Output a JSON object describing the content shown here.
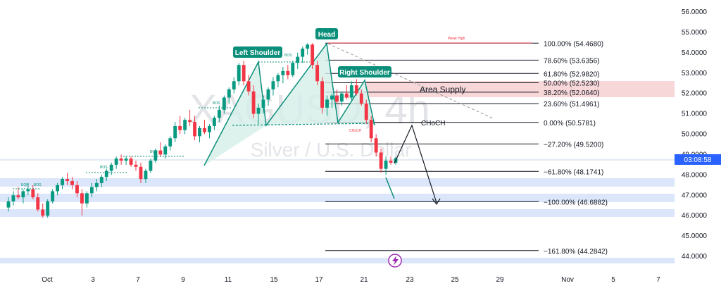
{
  "chart_data": {
    "type": "candlestick",
    "symbol_watermark": "XAGUSD, 4h",
    "subtitle_watermark": "Silver / U.S. Dollar",
    "ylim": [
      43.8,
      56.4
    ],
    "y_ticks": [
      "56.0000",
      "55.0000",
      "54.0000",
      "53.0000",
      "52.0000",
      "51.0000",
      "50.0000",
      "49.0000",
      "48.0000",
      "47.0000",
      "46.0000",
      "45.0000",
      "44.0000"
    ],
    "x_ticks": [
      "Oct",
      "3",
      "7",
      "9",
      "11",
      "15",
      "17",
      "21",
      "23",
      "25",
      "29",
      "Nov",
      "5",
      "7"
    ],
    "price_label": {
      "value": 48.82,
      "text": "03:08:58",
      "color": "#2962ff"
    },
    "candles": [
      [
        46.4,
        46.9,
        46.2,
        46.7
      ],
      [
        46.7,
        47.2,
        46.5,
        47.0
      ],
      [
        47.0,
        47.4,
        46.8,
        46.9
      ],
      [
        46.9,
        47.3,
        46.6,
        47.2
      ],
      [
        47.2,
        47.6,
        47.0,
        47.3
      ],
      [
        47.3,
        47.5,
        46.8,
        46.9
      ],
      [
        46.9,
        47.1,
        46.2,
        46.3
      ],
      [
        46.3,
        46.6,
        45.9,
        46.0
      ],
      [
        46.0,
        46.8,
        45.9,
        46.7
      ],
      [
        46.7,
        47.3,
        46.6,
        47.2
      ],
      [
        47.2,
        47.6,
        47.0,
        47.5
      ],
      [
        47.5,
        47.9,
        47.3,
        47.8
      ],
      [
        47.8,
        48.1,
        47.5,
        47.7
      ],
      [
        47.7,
        47.9,
        47.3,
        47.5
      ],
      [
        47.5,
        47.7,
        46.9,
        47.1
      ],
      [
        47.1,
        47.3,
        46.0,
        46.6
      ],
      [
        46.6,
        47.2,
        46.4,
        47.1
      ],
      [
        47.1,
        47.6,
        46.9,
        47.4
      ],
      [
        47.4,
        47.8,
        47.2,
        47.6
      ],
      [
        47.6,
        48.0,
        47.4,
        47.9
      ],
      [
        47.9,
        48.3,
        47.7,
        48.2
      ],
      [
        48.2,
        48.6,
        48.0,
        48.5
      ],
      [
        48.5,
        48.9,
        48.3,
        48.8
      ],
      [
        48.8,
        49.0,
        48.5,
        48.7
      ],
      [
        48.7,
        48.9,
        48.5,
        48.8
      ],
      [
        48.8,
        48.9,
        48.4,
        48.5
      ],
      [
        48.5,
        48.7,
        48.2,
        48.4
      ],
      [
        48.4,
        48.6,
        47.6,
        47.8
      ],
      [
        47.8,
        48.3,
        47.6,
        48.2
      ],
      [
        48.2,
        48.8,
        48.1,
        48.7
      ],
      [
        48.7,
        49.3,
        48.6,
        49.2
      ],
      [
        49.2,
        49.6,
        48.9,
        49.0
      ],
      [
        49.0,
        49.5,
        48.8,
        49.4
      ],
      [
        49.4,
        49.9,
        49.2,
        49.8
      ],
      [
        49.8,
        50.6,
        49.6,
        50.4
      ],
      [
        50.4,
        50.9,
        50.0,
        50.2
      ],
      [
        50.2,
        50.8,
        50.0,
        50.7
      ],
      [
        50.7,
        51.2,
        50.4,
        50.6
      ],
      [
        50.6,
        50.9,
        49.7,
        49.9
      ],
      [
        49.9,
        50.4,
        49.6,
        50.3
      ],
      [
        50.3,
        50.7,
        50.0,
        50.1
      ],
      [
        50.1,
        50.5,
        49.8,
        50.4
      ],
      [
        50.4,
        50.9,
        50.2,
        50.8
      ],
      [
        50.8,
        51.4,
        50.6,
        51.2
      ],
      [
        51.2,
        51.9,
        51.0,
        51.8
      ],
      [
        51.8,
        52.3,
        51.5,
        52.2
      ],
      [
        52.2,
        52.8,
        52.0,
        52.6
      ],
      [
        52.6,
        53.5,
        52.4,
        53.4
      ],
      [
        53.4,
        53.6,
        52.4,
        52.6
      ],
      [
        52.6,
        52.9,
        51.9,
        52.1
      ],
      [
        52.1,
        52.4,
        50.8,
        51.0
      ],
      [
        51.0,
        51.5,
        50.5,
        51.3
      ],
      [
        51.3,
        51.9,
        51.0,
        51.7
      ],
      [
        51.7,
        52.3,
        51.4,
        52.2
      ],
      [
        52.2,
        52.8,
        51.9,
        52.6
      ],
      [
        52.6,
        53.0,
        52.3,
        52.9
      ],
      [
        52.9,
        53.3,
        52.5,
        53.1
      ],
      [
        53.1,
        53.4,
        52.7,
        52.9
      ],
      [
        52.9,
        53.6,
        52.8,
        53.5
      ],
      [
        53.5,
        54.0,
        53.2,
        53.8
      ],
      [
        53.8,
        54.3,
        53.5,
        54.2
      ],
      [
        54.2,
        54.47,
        53.9,
        54.4
      ],
      [
        54.4,
        54.47,
        53.2,
        53.4
      ],
      [
        53.4,
        53.6,
        52.4,
        52.6
      ],
      [
        52.6,
        52.8,
        51.0,
        51.3
      ],
      [
        51.3,
        51.9,
        50.9,
        51.7
      ],
      [
        51.7,
        52.0,
        51.3,
        51.9
      ],
      [
        51.9,
        52.2,
        51.5,
        51.6
      ],
      [
        51.6,
        52.1,
        51.4,
        52.0
      ],
      [
        52.0,
        52.4,
        51.7,
        51.8
      ],
      [
        51.8,
        52.6,
        51.6,
        52.4
      ],
      [
        52.4,
        52.7,
        51.9,
        52.0
      ],
      [
        52.0,
        52.2,
        51.4,
        51.5
      ],
      [
        51.5,
        51.7,
        50.5,
        50.7
      ],
      [
        50.7,
        50.9,
        49.6,
        49.8
      ],
      [
        49.8,
        50.0,
        48.9,
        49.1
      ],
      [
        49.1,
        49.3,
        48.1,
        48.3
      ],
      [
        48.3,
        48.9,
        48.0,
        48.7
      ],
      [
        48.7,
        48.9,
        48.5,
        48.6
      ],
      [
        48.6,
        48.9,
        48.5,
        48.82
      ]
    ],
    "annotations": {
      "patterns": [
        "Left Shoulder",
        "Head",
        "Right Shoulder"
      ],
      "bos": [
        "BOS",
        "BOS",
        "BOS",
        "BOS",
        "BOS"
      ],
      "eqh": "EQH",
      "choch_small": "CHoCH",
      "choch": "CHoCH",
      "weak_high": "Weak High",
      "area_supply": "Area Supply",
      "fib_levels": [
        {
          "value": 54.468,
          "label": "100.00% (54.4680)"
        },
        {
          "value": 53.6356,
          "label": "78.60% (53.6356)"
        },
        {
          "value": 52.982,
          "label": "61.80% (52.9820)"
        },
        {
          "value": 52.523,
          "label": "50.00% (52.5230)"
        },
        {
          "value": 52.064,
          "label": "38.20% (52.0640)"
        },
        {
          "value": 51.4961,
          "label": "23.60% (51.4961)"
        },
        {
          "value": 50.5781,
          "label": "0.00% (50.5781)"
        },
        {
          "value": 49.52,
          "label": "−27.20% (49.5200)"
        },
        {
          "value": 48.1741,
          "label": "−61.80% (48.1741)"
        },
        {
          "value": 46.6882,
          "label": "−100.00% (46.6882)"
        },
        {
          "value": 44.2842,
          "label": "−161.80% (44.2842)"
        }
      ]
    },
    "colors": {
      "up": "#089981",
      "down": "#f23645",
      "zone": "#dbe6fb",
      "supply": "#f8d7d9",
      "pattern": "#0b8f7a"
    }
  }
}
